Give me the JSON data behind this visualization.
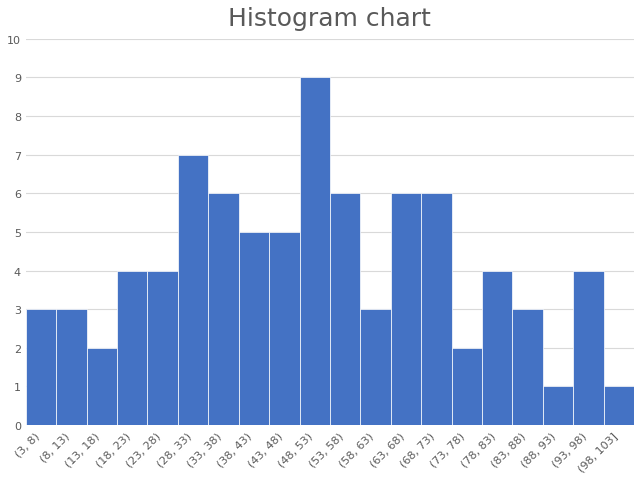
{
  "title": "Histogram chart",
  "title_fontsize": 18,
  "title_color": "#595959",
  "bar_color": "#4472C4",
  "bar_edgecolor": "#ffffff",
  "categories": [
    "(3, 8)",
    "(8, 13)",
    "(13, 18)",
    "(18, 23)",
    "(23, 28)",
    "(28, 33)",
    "(33, 38)",
    "(38, 43)",
    "(43, 48)",
    "(48, 53)",
    "(53, 58)",
    "(58, 63)",
    "(63, 68)",
    "(68, 73)",
    "(73, 78)",
    "(78, 83)",
    "(83, 88)",
    "(88, 93)",
    "(93, 98)",
    "(98, 103]"
  ],
  "values": [
    3,
    3,
    2,
    4,
    4,
    7,
    6,
    5,
    5,
    9,
    6,
    3,
    6,
    6,
    2,
    4,
    3,
    1,
    4,
    1
  ],
  "ylim": [
    0,
    10
  ],
  "yticks": [
    0,
    1,
    2,
    3,
    4,
    5,
    6,
    7,
    8,
    9,
    10
  ],
  "background_color": "#ffffff",
  "grid_color": "#d9d9d9",
  "tick_labelsize": 8,
  "tick_color": "#595959",
  "bar_linewidth": 0.5
}
